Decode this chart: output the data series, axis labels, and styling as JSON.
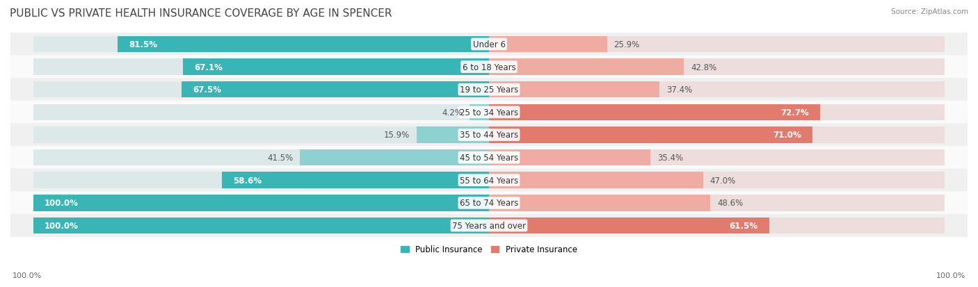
{
  "title": "PUBLIC VS PRIVATE HEALTH INSURANCE COVERAGE BY AGE IN SPENCER",
  "source": "Source: ZipAtlas.com",
  "categories": [
    "Under 6",
    "6 to 18 Years",
    "19 to 25 Years",
    "25 to 34 Years",
    "35 to 44 Years",
    "45 to 54 Years",
    "55 to 64 Years",
    "65 to 74 Years",
    "75 Years and over"
  ],
  "public_values": [
    81.5,
    67.1,
    67.5,
    4.2,
    15.9,
    41.5,
    58.6,
    100.0,
    100.0
  ],
  "private_values": [
    25.9,
    42.8,
    37.4,
    72.7,
    71.0,
    35.4,
    47.0,
    48.6,
    61.5
  ],
  "public_color_dark": "#3ab5b5",
  "public_color_light": "#8fd0d0",
  "private_color_dark": "#e07b6e",
  "private_color_light": "#f0aba3",
  "row_bg_even": "#f0f0f0",
  "row_bg_odd": "#fafafa",
  "axis_label_left": "100.0%",
  "axis_label_right": "100.0%",
  "legend_public": "Public Insurance",
  "legend_private": "Private Insurance",
  "title_fontsize": 11,
  "bar_label_fontsize": 8.5,
  "category_fontsize": 8.5,
  "source_fontsize": 7.5
}
